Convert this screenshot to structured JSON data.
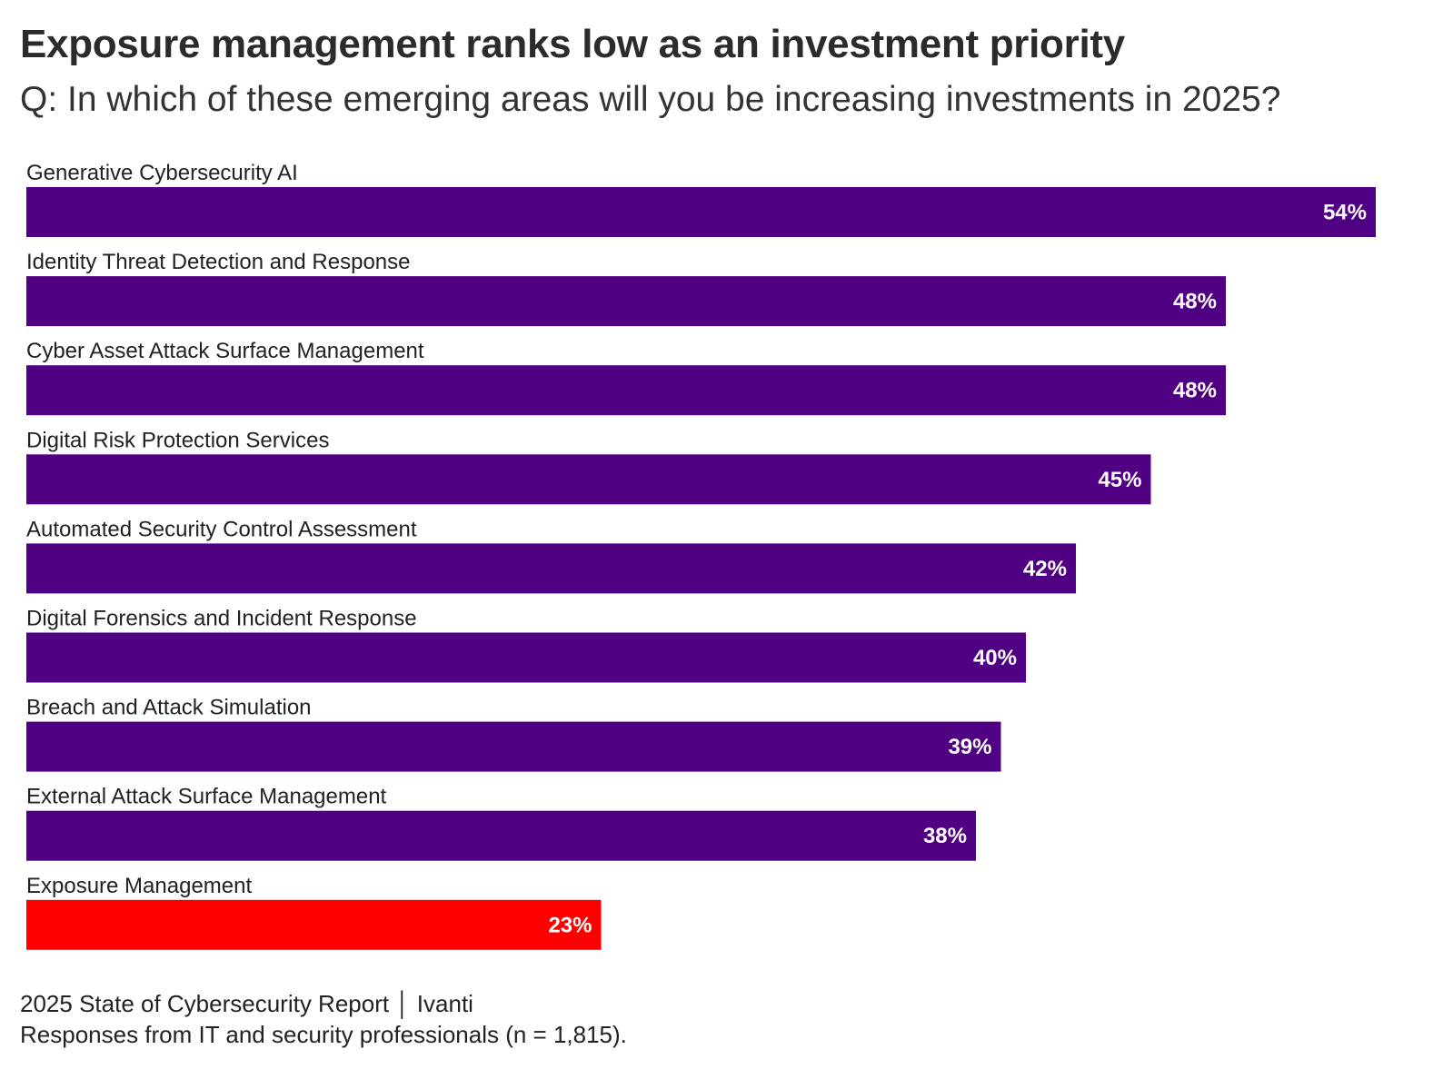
{
  "chart_data": {
    "type": "bar",
    "orientation": "horizontal",
    "title": "Exposure management ranks low as an investment priority",
    "subtitle": "Q: In which of these emerging areas will you be increasing investments in 2025?",
    "categories": [
      "Generative Cybersecurity AI",
      "Identity Threat Detection and Response",
      "Cyber Asset Attack Surface Management",
      "Digital Risk Protection Services",
      "Automated Security Control Assessment",
      "Digital Forensics and Incident Response",
      "Breach and Attack Simulation",
      "External Attack Surface Management",
      "Exposure Management"
    ],
    "values": [
      54,
      48,
      48,
      45,
      42,
      40,
      39,
      38,
      23
    ],
    "value_labels": [
      "54%",
      "48%",
      "48%",
      "45%",
      "42%",
      "40%",
      "39%",
      "38%",
      "23%"
    ],
    "bar_colors": [
      "#4f0083",
      "#4f0083",
      "#4f0083",
      "#4f0083",
      "#4f0083",
      "#4f0083",
      "#4f0083",
      "#4f0083",
      "#ff0000"
    ],
    "xlim": [
      0,
      54
    ],
    "xlabel": "",
    "ylabel": "",
    "grid": false,
    "unit": "%"
  },
  "footer": {
    "source": "2025 State of Cybersecurity Report │ Ivanti",
    "note": "Responses from IT and security professionals (n = 1,815)."
  }
}
